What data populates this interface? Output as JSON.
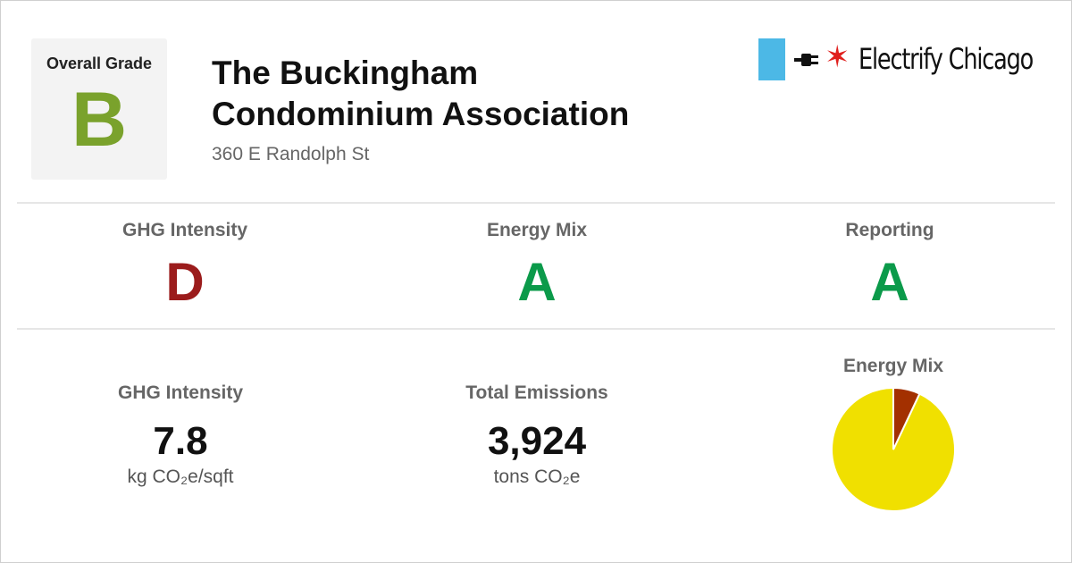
{
  "overall": {
    "label": "Overall Grade",
    "grade": "B",
    "color": "#7aa22c"
  },
  "building": {
    "name_line1": "The Buckingham",
    "name_line2": "Condominium Association",
    "address": "360 E Randolph St"
  },
  "logo": {
    "text": "Electrify Chicago",
    "accent_blue": "#4cb8e6",
    "star_red": "#e0201e",
    "icons": [
      "plug-icon",
      "star-icon"
    ]
  },
  "grades": [
    {
      "label": "GHG Intensity",
      "grade": "D",
      "color": "#9b1c1c"
    },
    {
      "label": "Energy Mix",
      "grade": "A",
      "color": "#0b9a4a"
    },
    {
      "label": "Reporting",
      "grade": "A",
      "color": "#0b9a4a"
    }
  ],
  "metrics": {
    "ghg": {
      "label": "GHG Intensity",
      "value": "7.8",
      "unit": "kg CO₂e/sqft"
    },
    "emissions": {
      "label": "Total Emissions",
      "value": "3,924",
      "unit": "tons CO₂e"
    }
  },
  "chart_data": {
    "type": "pie",
    "title": "Energy Mix",
    "values": [
      0.93,
      0.07
    ],
    "colors": [
      "#f0e000",
      "#a33000"
    ]
  }
}
